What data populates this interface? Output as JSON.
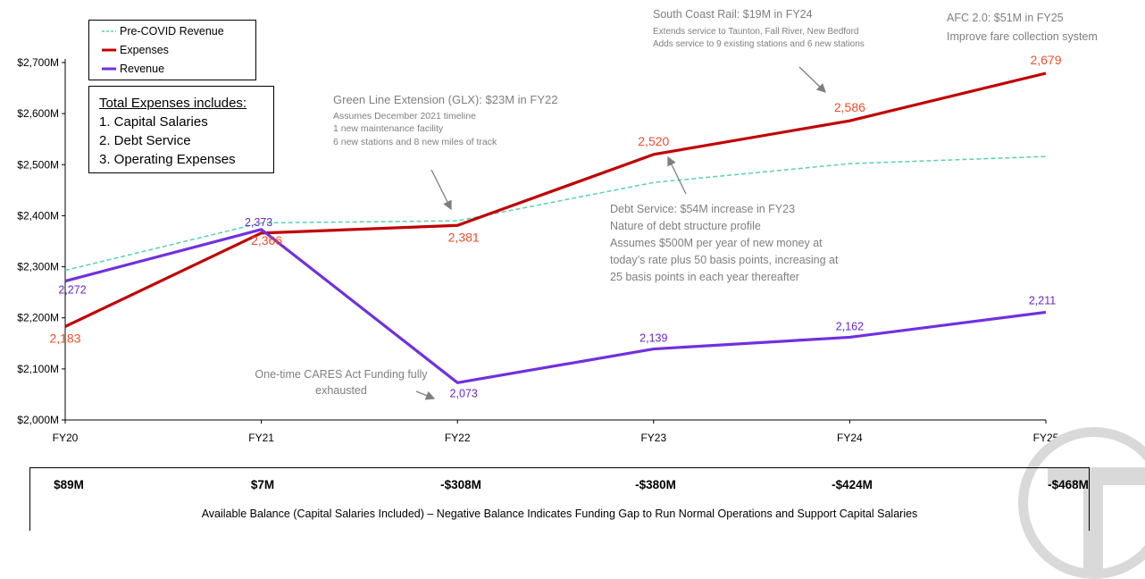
{
  "chart_data": {
    "type": "line",
    "categories": [
      "FY20",
      "FY21",
      "FY22",
      "FY23",
      "FY24",
      "FY25"
    ],
    "y_ticks": [
      "$2,000M",
      "$2,100M",
      "$2,200M",
      "$2,300M",
      "$2,400M",
      "$2,500M",
      "$2,600M",
      "$2,700M"
    ],
    "ylim": [
      2000,
      2700
    ],
    "series": [
      {
        "name": "Pre-COVID Revenue",
        "color": "#5ad0b0",
        "style": "dashed",
        "values": [
          2293,
          2386,
          2390,
          2465,
          2502,
          2516
        ]
      },
      {
        "name": "Expenses",
        "color": "#c00000",
        "style": "solid",
        "values": [
          2183,
          2366,
          2381,
          2520,
          2586,
          2679
        ],
        "labels": [
          "2,183",
          "2,366",
          "2,381",
          "2,520",
          "2,586",
          "2,679"
        ],
        "label_color": "#e8502f"
      },
      {
        "name": "Revenue",
        "color": "#7030e0",
        "style": "solid",
        "values": [
          2272,
          2373,
          2073,
          2139,
          2162,
          2211
        ],
        "labels": [
          "2,272",
          "2,373",
          "2,073",
          "2,139",
          "2,162",
          "2,211"
        ],
        "label_color": "#6a27c4"
      }
    ],
    "legend_placement": "top-left",
    "grid": false
  },
  "annotations": {
    "glx": {
      "title": "Green Line Extension (GLX): $23M in FY22",
      "lines": [
        "Assumes December 2021 timeline",
        "1 new maintenance facility",
        "6 new stations and 8 new miles of track"
      ]
    },
    "scr": {
      "title": "South Coast Rail: $19M in FY24",
      "lines": [
        "Extends service to Taunton, Fall River, New Bedford",
        "Adds service to 9 existing stations and 6 new stations"
      ]
    },
    "afc": {
      "title": "AFC 2.0: $51M  in FY25",
      "lines": [
        "Improve fare collection system"
      ]
    },
    "debt": {
      "title": "Debt Service: $54M increase in FY23",
      "lines": [
        "Nature of debt structure profile",
        "Assumes $500M per year of new money at",
        "today’s rate plus 50 basis points, increasing at",
        "25 basis points in each year thereafter"
      ]
    },
    "cares": {
      "lines": [
        "One-time CARES Act Funding  fully",
        "exhausted"
      ]
    }
  },
  "expenses_box": {
    "heading": "Total Expenses includes:",
    "items": [
      "1.  Capital Salaries",
      "2.  Debt Service",
      "3.  Operating Expenses"
    ]
  },
  "balance": {
    "values": [
      "$89M",
      "$7M",
      "-$308M",
      "-$380M",
      "-$424M",
      "-$468M"
    ],
    "caption": "Available Balance (Capital Salaries Included) – Negative Balance Indicates Funding Gap to Run Normal Operations and Support Capital Salaries"
  }
}
